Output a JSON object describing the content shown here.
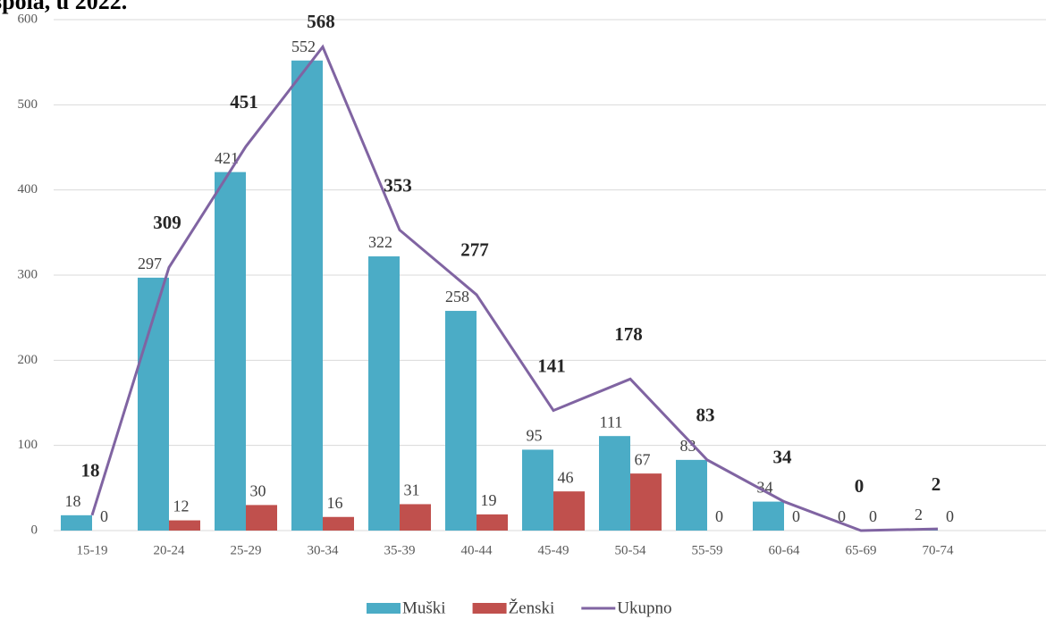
{
  "chart_data": {
    "type": "bar",
    "title": "spola, u 2022.",
    "categories": [
      "15-19",
      "20-24",
      "25-29",
      "30-34",
      "35-39",
      "40-44",
      "45-49",
      "50-54",
      "55-59",
      "60-64",
      "65-69",
      "70-74"
    ],
    "series": [
      {
        "name": "Muški",
        "color": "#4bacc6",
        "type": "bar",
        "values": [
          18,
          297,
          421,
          552,
          322,
          258,
          95,
          111,
          83,
          34,
          0,
          2
        ]
      },
      {
        "name": "Ženski",
        "color": "#c0504d",
        "type": "bar",
        "values": [
          0,
          12,
          30,
          16,
          31,
          19,
          46,
          67,
          0,
          0,
          0,
          0
        ]
      },
      {
        "name": "Ukupno",
        "color": "#8064a2",
        "type": "line",
        "values": [
          18,
          309,
          451,
          568,
          353,
          277,
          141,
          178,
          83,
          34,
          0,
          2
        ]
      }
    ],
    "ylim": [
      0,
      600
    ],
    "yticks": [
      0,
      100,
      200,
      300,
      400,
      500,
      600
    ],
    "grid": true,
    "legend": "bottom"
  }
}
